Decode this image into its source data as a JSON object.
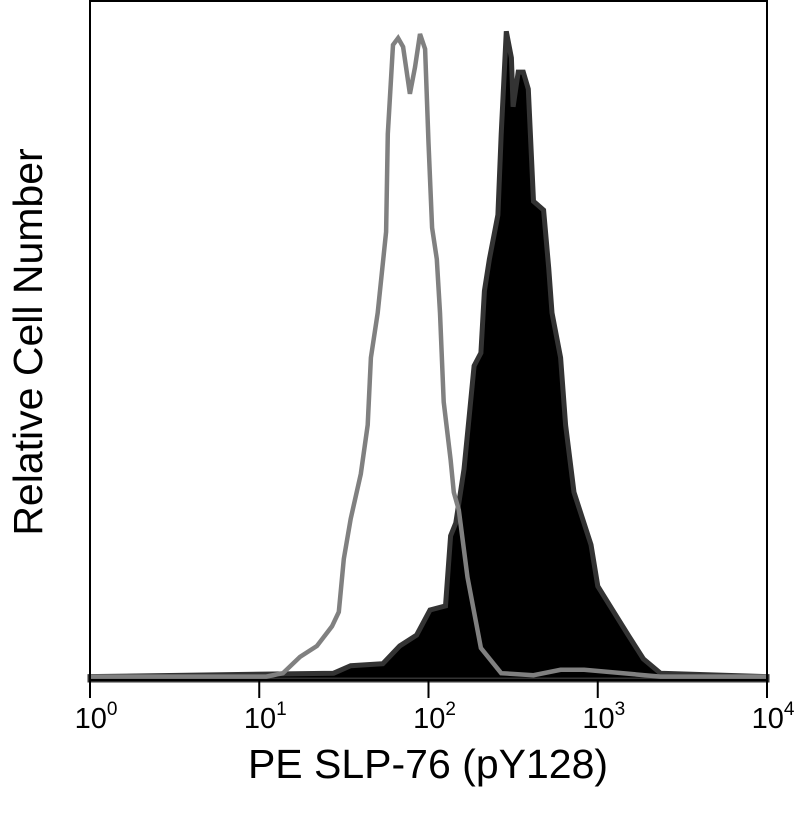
{
  "chart_data": {
    "type": "area",
    "title": "",
    "xlabel": "PE SLP-76 (pY128)",
    "ylabel": "Relative Cell Number",
    "x_scale": "log",
    "xlim": [
      1,
      10000
    ],
    "ylim": [
      0,
      100
    ],
    "grid": false,
    "x_ticks": [
      {
        "base": "10",
        "exp": "0",
        "value": 1
      },
      {
        "base": "10",
        "exp": "1",
        "value": 10
      },
      {
        "base": "10",
        "exp": "2",
        "value": 100
      },
      {
        "base": "10",
        "exp": "3",
        "value": 1000
      },
      {
        "base": "10",
        "exp": "4",
        "value": 10000
      }
    ],
    "series": [
      {
        "style": "filled",
        "fill": "#000000",
        "stroke": "#333333",
        "x": [
          1,
          27.5,
          34.7,
          53.7,
          67.6,
          85.1,
          102,
          126,
          135,
          145,
          162,
          174,
          186,
          204,
          214,
          229,
          257,
          269,
          288,
          309,
          316,
          339,
          363,
          389,
          417,
          479,
          513,
          537,
          603,
          646,
          724,
          912,
          1000,
          1202,
          1514,
          1862,
          2344,
          10000
        ],
        "y": [
          0.5,
          1.0,
          2.1,
          2.4,
          5.0,
          6.6,
          10.3,
          10.9,
          21.2,
          23.1,
          31.0,
          38.8,
          46.2,
          48.1,
          57.2,
          61.9,
          68.4,
          80.3,
          95.4,
          91.5,
          84.3,
          89.4,
          89.4,
          86.9,
          70.4,
          69.1,
          60.6,
          54.0,
          47.4,
          37.5,
          27.6,
          19.9,
          13.8,
          10.6,
          6.6,
          3.1,
          1.0,
          0.5
        ]
      },
      {
        "style": "outline",
        "stroke": "#808080",
        "x": [
          1,
          11,
          13.8,
          17.4,
          21.9,
          26.9,
          29.5,
          31.6,
          34.7,
          39.8,
          43.7,
          45.7,
          50.1,
          56.2,
          57.5,
          61.7,
          66.1,
          70.8,
          77.6,
          83.2,
          89.1,
          95.5,
          100,
          105,
          112,
          117,
          123,
          135,
          141,
          151,
          170,
          204,
          269,
          417,
          603,
          832,
          2344,
          10000
        ],
        "y": [
          0.5,
          0.5,
          1.0,
          3.4,
          5.0,
          7.9,
          10.0,
          17.8,
          23.7,
          30.3,
          37.5,
          47.4,
          54.0,
          65.9,
          80.3,
          93.4,
          94.4,
          93.1,
          86.2,
          90.1,
          95.0,
          92.8,
          79.0,
          66.5,
          61.9,
          54.0,
          40.9,
          32.4,
          27.6,
          25.0,
          15.1,
          4.7,
          1.0,
          0.7,
          1.5,
          1.5,
          0.5,
          0.5
        ]
      }
    ]
  }
}
